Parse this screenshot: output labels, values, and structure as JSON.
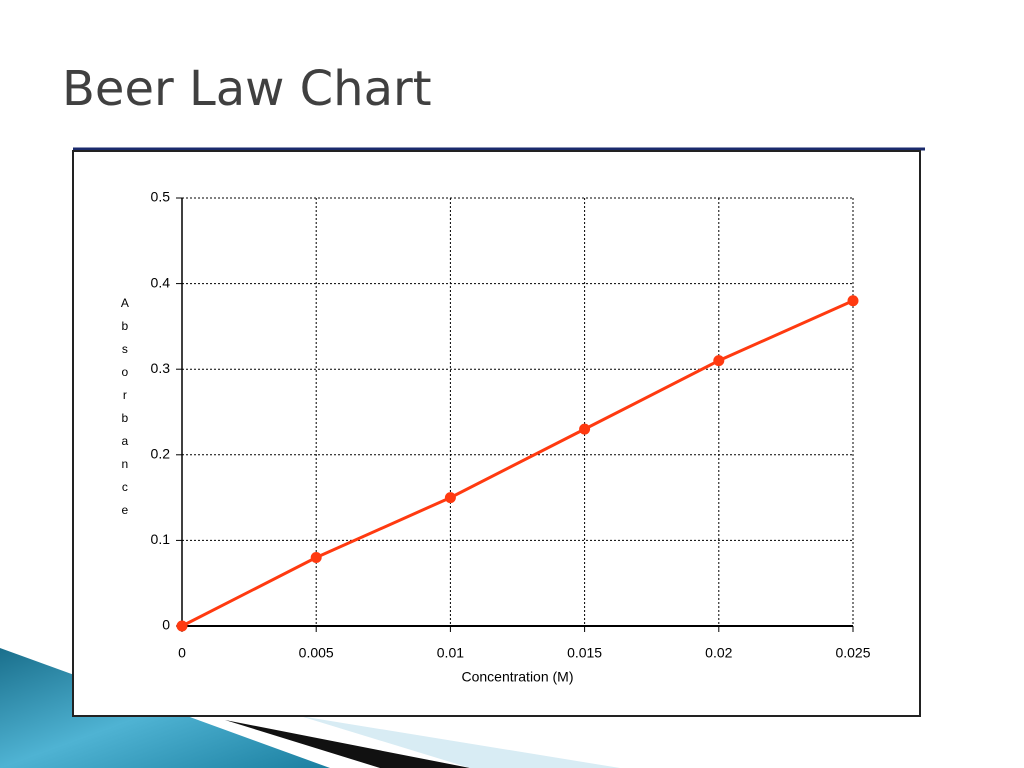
{
  "slide_title": "Beer Law Chart",
  "chart_data": {
    "type": "line",
    "x_label": "Concentration (M)",
    "y_label": "Absorbance",
    "x": [
      0,
      0.005,
      0.01,
      0.015,
      0.02,
      0.025
    ],
    "series": [
      {
        "name": "Absorbance",
        "color": "#ff3a10",
        "values": [
          0,
          0.08,
          0.15,
          0.23,
          0.31,
          0.38
        ]
      }
    ],
    "xlim": [
      0,
      0.025
    ],
    "xticks": [
      0,
      0.005,
      0.01,
      0.015,
      0.02,
      0.025
    ],
    "ylim": [
      0,
      0.5
    ],
    "yticks": [
      0,
      0.1,
      0.2,
      0.3,
      0.4,
      0.5
    ],
    "grid": true
  }
}
